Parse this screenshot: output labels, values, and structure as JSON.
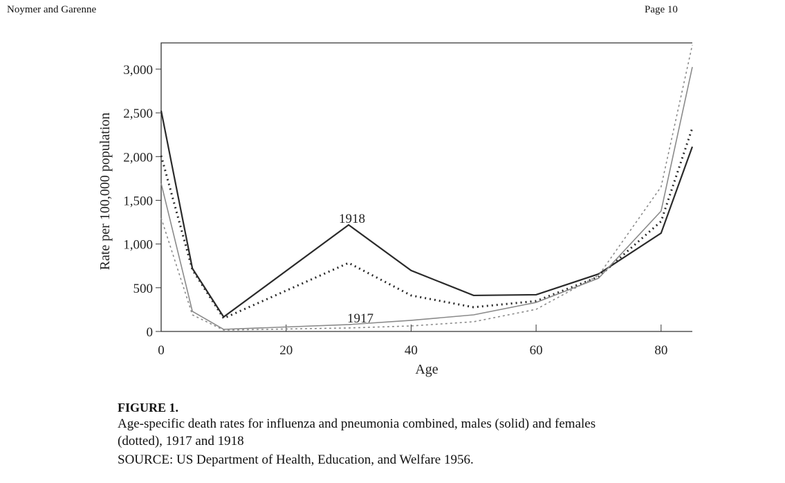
{
  "header": {
    "authors": "Noymer and Garenne",
    "page": "Page 10"
  },
  "chart_data": {
    "type": "line",
    "y_label": "Rate per 100,000 population",
    "x_label": "Age",
    "x": [
      0,
      5,
      10,
      30,
      40,
      50,
      60,
      70,
      80,
      85
    ],
    "series": [
      {
        "color": "#2a2a2a",
        "line_style": "solid",
        "values": [
          2525,
          720,
          166,
          1219,
          697,
          412,
          420,
          657,
          1124,
          2113
        ]
      },
      {
        "color": "#2a2a2a",
        "line_style": "dotted",
        "values": [
          2010,
          705,
          150,
          784,
          412,
          277,
          348,
          625,
          1259,
          2327
        ]
      },
      {
        "color": "#8a8a8a",
        "line_style": "solid",
        "values": [
          1694,
          230,
          24,
          79,
          127,
          190,
          332,
          609,
          1377,
          3024
        ]
      },
      {
        "color": "#8a8a8a",
        "line_style": "dotted",
        "values": [
          1298,
          190,
          16,
          40,
          63,
          111,
          253,
          641,
          1654,
          3277
        ]
      }
    ],
    "xlim": [
      0,
      85
    ],
    "ylim": [
      0,
      3300
    ],
    "xticks": [
      0,
      20,
      40,
      60,
      80
    ],
    "yticks": [
      0,
      500,
      {
        "value": 1000,
        "label": "1,000"
      },
      {
        "value": 1500,
        "label": "1,500"
      },
      {
        "value": 2000,
        "label": "2,000"
      },
      {
        "value": 2500,
        "label": "2,500"
      },
      {
        "value": 3000,
        "label": "3,000"
      }
    ],
    "annotations": [
      "1918",
      "1917"
    ]
  },
  "caption": {
    "label": "FIGURE 1.",
    "lines": [
      "Age-specific death rates for influenza and pneumonia combined, males (solid) and females",
      "(dotted), 1917 and 1918",
      "SOURCE: US Department of Health, Education, and Welfare 1956."
    ]
  }
}
